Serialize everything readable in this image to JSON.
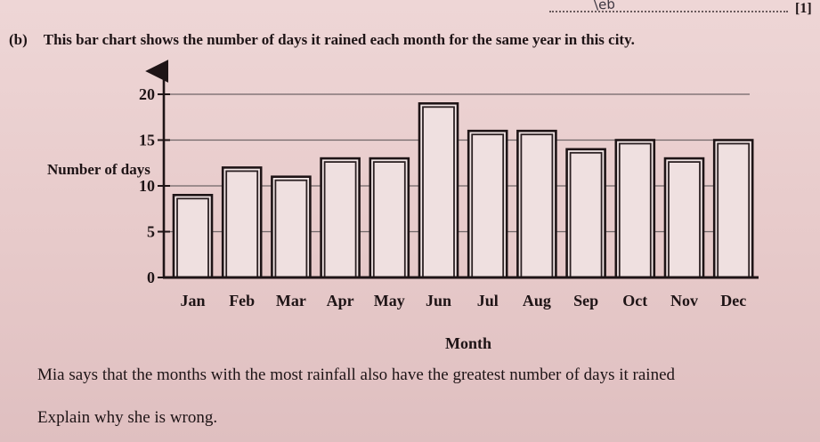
{
  "header": {
    "answer_handwritten": "\\eb",
    "marks": "[1]"
  },
  "question": {
    "label": "(b)",
    "text": "This bar chart shows the number of days it rained each month for the same year in this city."
  },
  "prompt": {
    "line1": "Mia says that the months with the most rainfall also have the greatest number of days it rained",
    "line2": "Explain why she is wrong."
  },
  "chart_data": {
    "type": "bar",
    "title": "",
    "xlabel": "Month",
    "ylabel": "Number of days",
    "categories": [
      "Jan",
      "Feb",
      "Mar",
      "Apr",
      "May",
      "Jun",
      "Jul",
      "Aug",
      "Sep",
      "Oct",
      "Nov",
      "Dec"
    ],
    "values": [
      9,
      12,
      11,
      13,
      13,
      19,
      16,
      16,
      14,
      15,
      13,
      15
    ],
    "ylim": [
      0,
      20
    ],
    "yticks": [
      0,
      5,
      10,
      15,
      20
    ],
    "grid": true,
    "legend": "none"
  }
}
